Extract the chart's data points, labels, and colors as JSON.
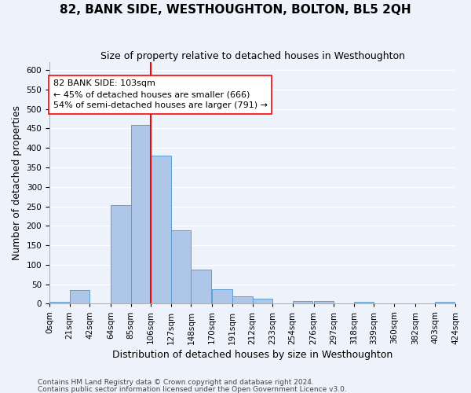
{
  "title": "82, BANK SIDE, WESTHOUGHTON, BOLTON, BL5 2QH",
  "subtitle": "Size of property relative to detached houses in Westhoughton",
  "xlabel": "Distribution of detached houses by size in Westhoughton",
  "ylabel": "Number of detached properties",
  "bin_labels": [
    "0sqm",
    "21sqm",
    "42sqm",
    "64sqm",
    "85sqm",
    "106sqm",
    "127sqm",
    "148sqm",
    "170sqm",
    "191sqm",
    "212sqm",
    "233sqm",
    "254sqm",
    "276sqm",
    "297sqm",
    "318sqm",
    "339sqm",
    "360sqm",
    "382sqm",
    "403sqm",
    "424sqm"
  ],
  "bar_values": [
    5,
    35,
    0,
    253,
    458,
    380,
    188,
    88,
    38,
    18,
    12,
    0,
    7,
    6,
    0,
    5,
    0,
    0,
    0,
    5
  ],
  "bar_left_edges": [
    0,
    21,
    42,
    64,
    85,
    106,
    127,
    148,
    170,
    191,
    212,
    233,
    254,
    276,
    297,
    318,
    339,
    360,
    382,
    403
  ],
  "bin_width": 21,
  "bar_color": "#aec6e8",
  "bar_edge_color": "#5a9fd4",
  "vline_x": 106,
  "vline_color": "red",
  "ylim": [
    0,
    620
  ],
  "yticks": [
    0,
    50,
    100,
    150,
    200,
    250,
    300,
    350,
    400,
    450,
    500,
    550,
    600
  ],
  "annotation_text": "82 BANK SIDE: 103sqm\n← 45% of detached houses are smaller (666)\n54% of semi-detached houses are larger (791) →",
  "annotation_box_color": "white",
  "annotation_box_edgecolor": "red",
  "footer1": "Contains HM Land Registry data © Crown copyright and database right 2024.",
  "footer2": "Contains public sector information licensed under the Open Government Licence v3.0.",
  "bg_color": "#eef2fb",
  "grid_color": "white",
  "title_fontsize": 11,
  "subtitle_fontsize": 9,
  "ylabel_fontsize": 9,
  "xlabel_fontsize": 9,
  "tick_fontsize": 7.5,
  "annot_fontsize": 8
}
